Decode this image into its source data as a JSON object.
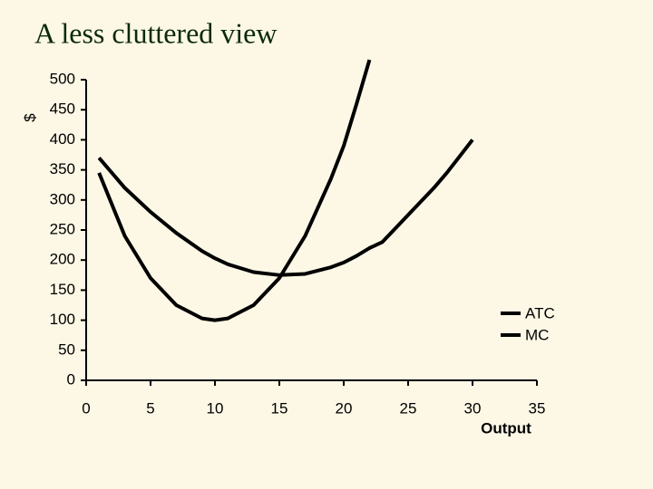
{
  "chart_data": {
    "type": "line",
    "title": "A less cluttered view",
    "y_label": "$",
    "x_label": "Output",
    "x": [
      1,
      3,
      5,
      7,
      9,
      10,
      11,
      13,
      15,
      17,
      19,
      20,
      21,
      22,
      23,
      25,
      27,
      28,
      30
    ],
    "series": [
      {
        "name": "ATC",
        "color": "#000000",
        "values": [
          370,
          320,
          280,
          245,
          215,
          203,
          193,
          180,
          175,
          177,
          188,
          196,
          207,
          220,
          230,
          275,
          320,
          345,
          400
        ]
      },
      {
        "name": "MC",
        "color": "#000000",
        "values": [
          345,
          240,
          170,
          125,
          103,
          100,
          103,
          125,
          170,
          240,
          335,
          390,
          460,
          533,
          null,
          null,
          null,
          null,
          null
        ]
      }
    ],
    "xlim": [
      0,
      35
    ],
    "xticks": [
      0,
      5,
      10,
      15,
      20,
      25,
      30,
      35
    ],
    "ylim": [
      0,
      500
    ],
    "yticks": [
      0,
      50,
      100,
      150,
      200,
      250,
      300,
      350,
      400,
      450,
      500
    ],
    "legend": "right"
  }
}
